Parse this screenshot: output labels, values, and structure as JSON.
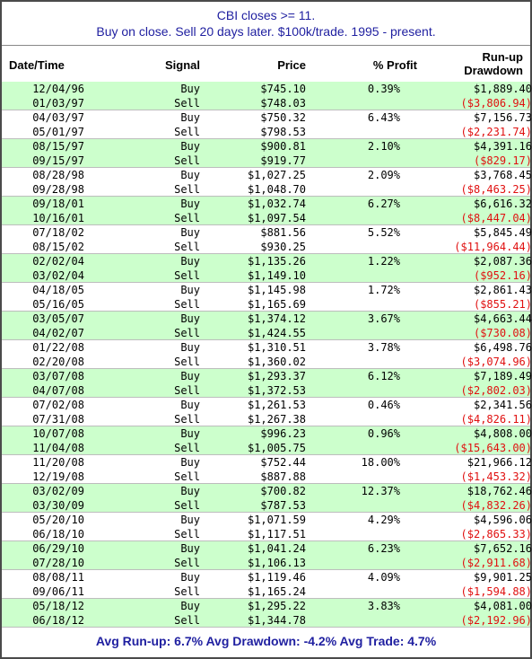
{
  "title": {
    "line1": "CBI closes >= 11.",
    "line2": "Buy on close. Sell 20 days later. $100k/trade. 1995 - present."
  },
  "headers": {
    "date": "Date/Time",
    "signal": "Signal",
    "price": "Price",
    "profit": "% Profit",
    "runup": "Run-up",
    "drawdown": "Drawdown"
  },
  "trades": [
    {
      "buy_date": "12/04/96",
      "buy_signal": "Buy",
      "buy_price": "$745.10",
      "profit": "0.39%",
      "runup": "$1,889.40",
      "sell_date": "01/03/97",
      "sell_signal": "Sell",
      "sell_price": "$748.03",
      "drawdown": "($3,806.94)"
    },
    {
      "buy_date": "04/03/97",
      "buy_signal": "Buy",
      "buy_price": "$750.32",
      "profit": "6.43%",
      "runup": "$7,156.73",
      "sell_date": "05/01/97",
      "sell_signal": "Sell",
      "sell_price": "$798.53",
      "drawdown": "($2,231.74)"
    },
    {
      "buy_date": "08/15/97",
      "buy_signal": "Buy",
      "buy_price": "$900.81",
      "profit": "2.10%",
      "runup": "$4,391.16",
      "sell_date": "09/15/97",
      "sell_signal": "Sell",
      "sell_price": "$919.77",
      "drawdown": "($829.17)"
    },
    {
      "buy_date": "08/28/98",
      "buy_signal": "Buy",
      "buy_price": "$1,027.25",
      "profit": "2.09%",
      "runup": "$3,768.45",
      "sell_date": "09/28/98",
      "sell_signal": "Sell",
      "sell_price": "$1,048.70",
      "drawdown": "($8,463.25)"
    },
    {
      "buy_date": "09/18/01",
      "buy_signal": "Buy",
      "buy_price": "$1,032.74",
      "profit": "6.27%",
      "runup": "$6,616.32",
      "sell_date": "10/16/01",
      "sell_signal": "Sell",
      "sell_price": "$1,097.54",
      "drawdown": "($8,447.04)"
    },
    {
      "buy_date": "07/18/02",
      "buy_signal": "Buy",
      "buy_price": "$881.56",
      "profit": "5.52%",
      "runup": "$5,845.49",
      "sell_date": "08/15/02",
      "sell_signal": "Sell",
      "sell_price": "$930.25",
      "drawdown": "($11,964.44)"
    },
    {
      "buy_date": "02/02/04",
      "buy_signal": "Buy",
      "buy_price": "$1,135.26",
      "profit": "1.22%",
      "runup": "$2,087.36",
      "sell_date": "03/02/04",
      "sell_signal": "Sell",
      "sell_price": "$1,149.10",
      "drawdown": "($952.16)"
    },
    {
      "buy_date": "04/18/05",
      "buy_signal": "Buy",
      "buy_price": "$1,145.98",
      "profit": "1.72%",
      "runup": "$2,861.43",
      "sell_date": "05/16/05",
      "sell_signal": "Sell",
      "sell_price": "$1,165.69",
      "drawdown": "($855.21)"
    },
    {
      "buy_date": "03/05/07",
      "buy_signal": "Buy",
      "buy_price": "$1,374.12",
      "profit": "3.67%",
      "runup": "$4,663.44",
      "sell_date": "04/02/07",
      "sell_signal": "Sell",
      "sell_price": "$1,424.55",
      "drawdown": "($730.08)"
    },
    {
      "buy_date": "01/22/08",
      "buy_signal": "Buy",
      "buy_price": "$1,310.51",
      "profit": "3.78%",
      "runup": "$6,498.76",
      "sell_date": "02/20/08",
      "sell_signal": "Sell",
      "sell_price": "$1,360.02",
      "drawdown": "($3,074.96)"
    },
    {
      "buy_date": "03/07/08",
      "buy_signal": "Buy",
      "buy_price": "$1,293.37",
      "profit": "6.12%",
      "runup": "$7,189.49",
      "sell_date": "04/07/08",
      "sell_signal": "Sell",
      "sell_price": "$1,372.53",
      "drawdown": "($2,802.03)"
    },
    {
      "buy_date": "07/02/08",
      "buy_signal": "Buy",
      "buy_price": "$1,261.53",
      "profit": "0.46%",
      "runup": "$2,341.56",
      "sell_date": "07/31/08",
      "sell_signal": "Sell",
      "sell_price": "$1,267.38",
      "drawdown": "($4,826.11)"
    },
    {
      "buy_date": "10/07/08",
      "buy_signal": "Buy",
      "buy_price": "$996.23",
      "profit": "0.96%",
      "runup": "$4,808.00",
      "sell_date": "11/04/08",
      "sell_signal": "Sell",
      "sell_price": "$1,005.75",
      "drawdown": "($15,643.00)"
    },
    {
      "buy_date": "11/20/08",
      "buy_signal": "Buy",
      "buy_price": "$752.44",
      "profit": "18.00%",
      "runup": "$21,966.12",
      "sell_date": "12/19/08",
      "sell_signal": "Sell",
      "sell_price": "$887.88",
      "drawdown": "($1,453.32)"
    },
    {
      "buy_date": "03/02/09",
      "buy_signal": "Buy",
      "buy_price": "$700.82",
      "profit": "12.37%",
      "runup": "$18,762.46",
      "sell_date": "03/30/09",
      "sell_signal": "Sell",
      "sell_price": "$787.53",
      "drawdown": "($4,832.26)"
    },
    {
      "buy_date": "05/20/10",
      "buy_signal": "Buy",
      "buy_price": "$1,071.59",
      "profit": "4.29%",
      "runup": "$4,596.06",
      "sell_date": "06/18/10",
      "sell_signal": "Sell",
      "sell_price": "$1,117.51",
      "drawdown": "($2,865.33)"
    },
    {
      "buy_date": "06/29/10",
      "buy_signal": "Buy",
      "buy_price": "$1,041.24",
      "profit": "6.23%",
      "runup": "$7,652.16",
      "sell_date": "07/28/10",
      "sell_signal": "Sell",
      "sell_price": "$1,106.13",
      "drawdown": "($2,911.68)"
    },
    {
      "buy_date": "08/08/11",
      "buy_signal": "Buy",
      "buy_price": "$1,119.46",
      "profit": "4.09%",
      "runup": "$9,901.25",
      "sell_date": "09/06/11",
      "sell_signal": "Sell",
      "sell_price": "$1,165.24",
      "drawdown": "($1,594.88)"
    },
    {
      "buy_date": "05/18/12",
      "buy_signal": "Buy",
      "buy_price": "$1,295.22",
      "profit": "3.83%",
      "runup": "$4,081.00",
      "sell_date": "06/18/12",
      "sell_signal": "Sell",
      "sell_price": "$1,344.78",
      "drawdown": "($2,192.96)"
    }
  ],
  "summary": "Avg Run-up: 6.7%   Avg Drawdown: -4.2%   Avg Trade: 4.7%",
  "colors": {
    "title": "#1f1fa0",
    "stripe": "#ccffcc",
    "drawdown": "#e01010"
  }
}
